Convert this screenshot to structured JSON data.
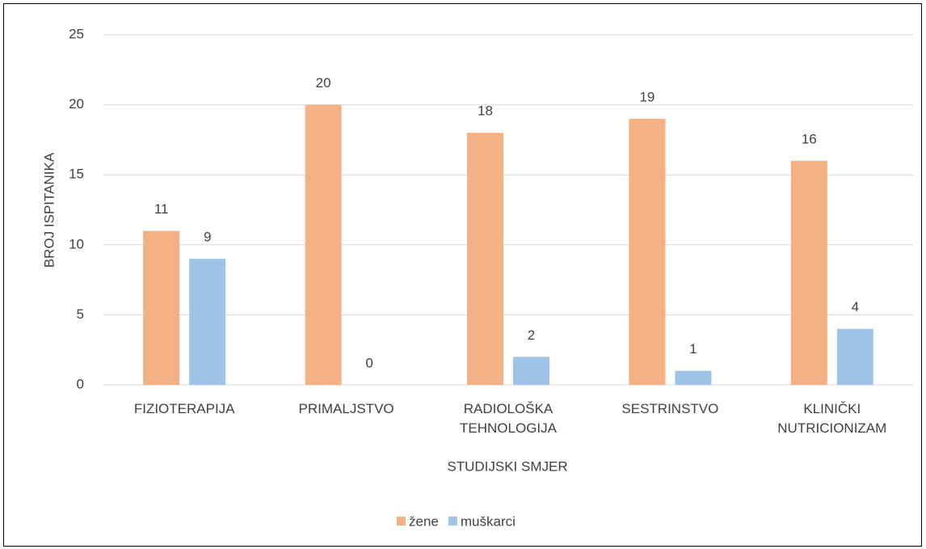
{
  "chart_data": {
    "type": "bar",
    "categories": [
      "FIZIOTERAPIJA",
      "PRIMALJSTVO",
      "RADIOLOŠKA TEHNOLOGIJA",
      "SESTRINSTVO",
      "KLINIČKI NUTRICIONIZAM"
    ],
    "series": [
      {
        "name": "žene",
        "color": "#f4b183",
        "values": [
          11,
          20,
          18,
          19,
          16
        ]
      },
      {
        "name": "muškarci",
        "color": "#9dc3e6",
        "values": [
          9,
          0,
          2,
          1,
          4
        ]
      }
    ],
    "x_label": "STUDIJSKI SMJER",
    "y_label": "BROJ ISPITANIKA",
    "ylim": [
      0,
      25
    ],
    "yticks": [
      0,
      5,
      10,
      15,
      20,
      25
    ],
    "grid": true,
    "legend": "bottom"
  }
}
